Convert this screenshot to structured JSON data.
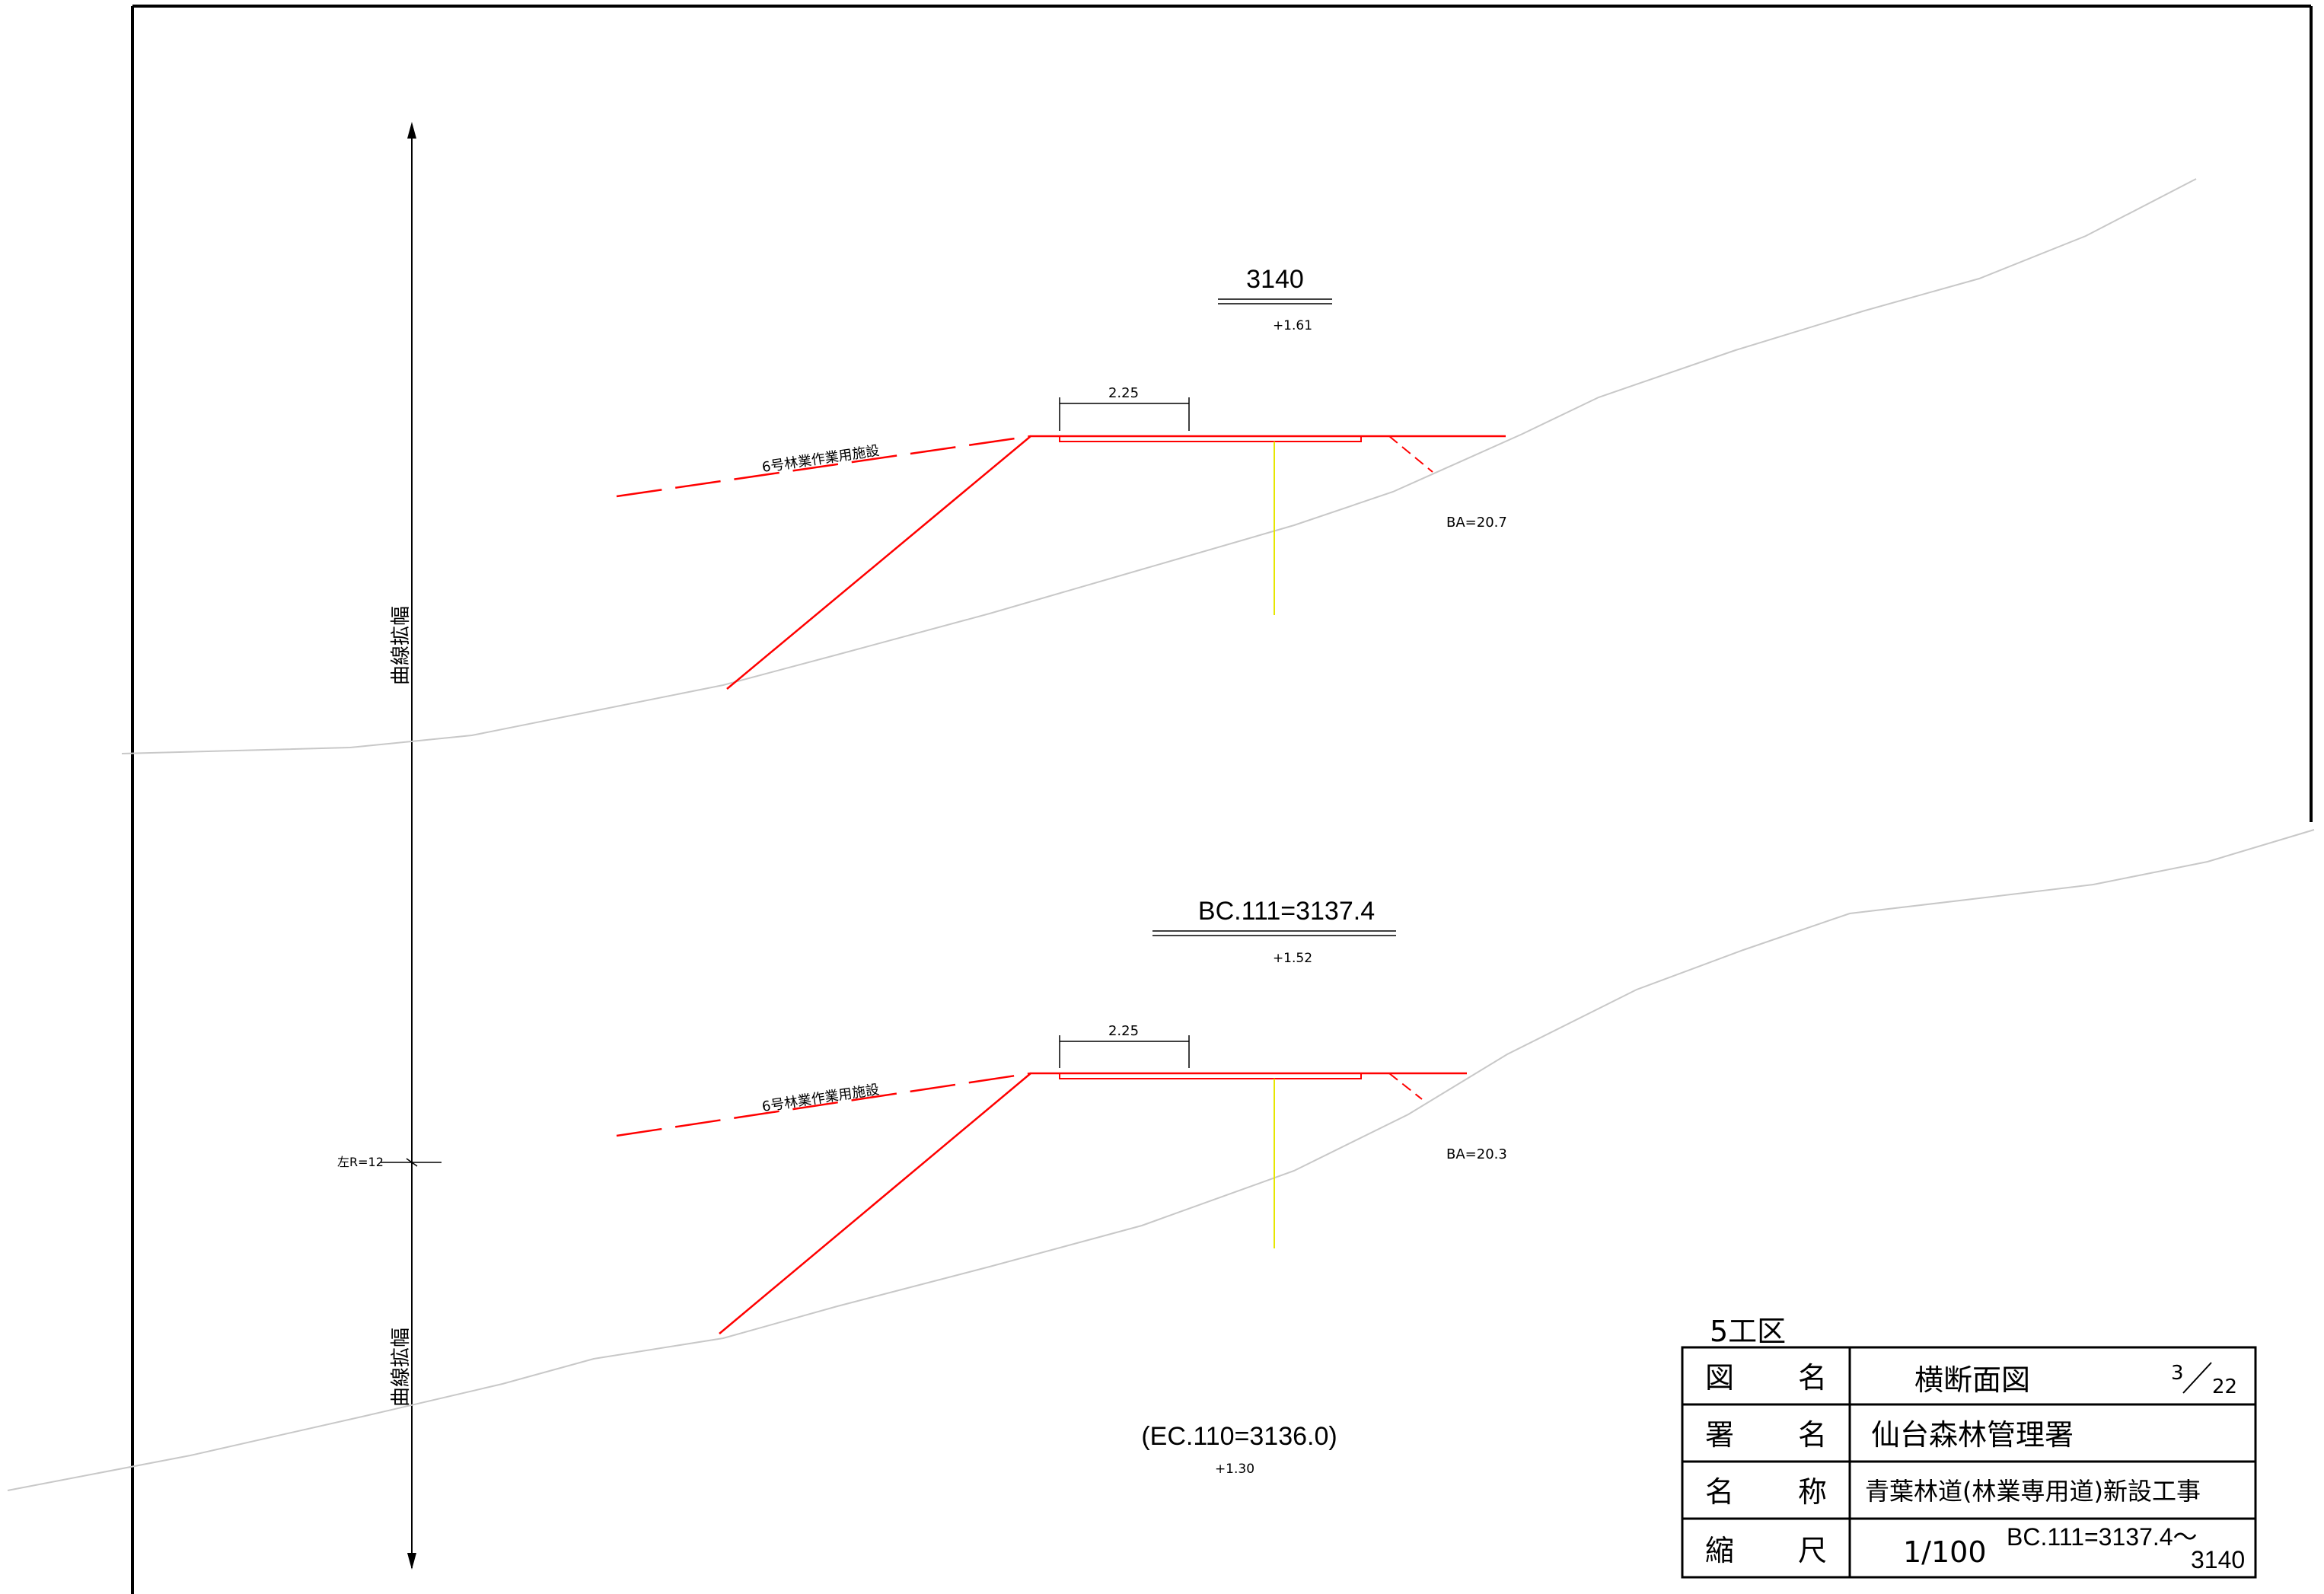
{
  "sections": [
    {
      "station": "3140",
      "height": "+1.61",
      "width_dim": "2.25",
      "facility_label": "6号林業作業用施設",
      "ba_label": "BA=20.7"
    },
    {
      "station": "BC.111=3137.4",
      "height": "+1.52",
      "width_dim": "2.25",
      "facility_label": "6号林業作業用施設",
      "ba_label": "BA=20.3"
    },
    {
      "station": "(EC.110=3136.0)",
      "height": "+1.30"
    }
  ],
  "side_labels": {
    "upper": "曲線拡幅",
    "lower": "曲線拡幅",
    "radius": "左R=12"
  },
  "title_block": {
    "section": "5工区",
    "rows": [
      {
        "key1": "図",
        "key2": "名",
        "value": "横断面図"
      },
      {
        "key1": "署",
        "key2": "名",
        "value": "仙台森林管理署"
      },
      {
        "key1": "名",
        "key2": "称",
        "value": "青葉林道(林業専用道)新設工事"
      },
      {
        "key1": "縮",
        "key2": "尺",
        "value": "1/100"
      }
    ],
    "sheet_num": "3",
    "sheet_total": "22",
    "range_top": "BC.111=3137.4〜",
    "range_bottom": "3140"
  },
  "colors": {
    "design_line": "#ff0000",
    "ground_line": "#c8c8c8",
    "centerline": "#e6e600",
    "ink": "#000000"
  }
}
